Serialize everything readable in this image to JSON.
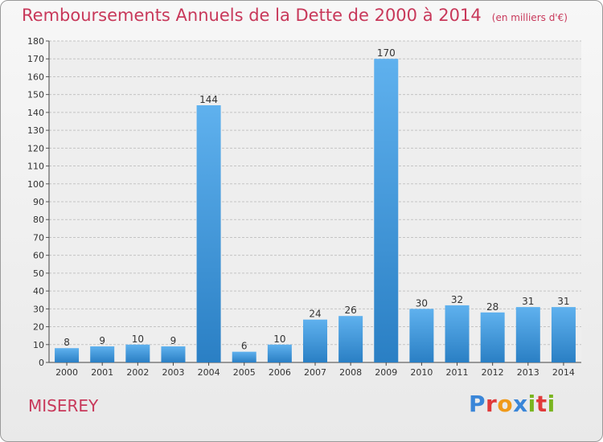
{
  "header": {
    "title": "Remboursements Annuels de la Dette de 2000 à 2014",
    "unit_note": "(en milliers d'€)"
  },
  "footer": {
    "town": "MISEREY",
    "logo": {
      "text": "Proxiti",
      "letters": [
        "P",
        "r",
        "o",
        "x",
        "i",
        "t",
        "i"
      ]
    }
  },
  "colors": {
    "title": "#c8385a",
    "bar_light": "#5fb1ee",
    "bar_dark": "#2a7fc4",
    "logo_letters": [
      "#3a86d8",
      "#e03a3a",
      "#f09a1a",
      "#3a86d8",
      "#7ab520",
      "#e03a3a",
      "#7ab520"
    ]
  },
  "chart_data": {
    "type": "bar",
    "categories": [
      "2000",
      "2001",
      "2002",
      "2003",
      "2004",
      "2005",
      "2006",
      "2007",
      "2008",
      "2009",
      "2010",
      "2011",
      "2012",
      "2013",
      "2014"
    ],
    "values": [
      8,
      9,
      10,
      9,
      144,
      6,
      10,
      24,
      26,
      170,
      30,
      32,
      28,
      31,
      31
    ],
    "ylim": [
      0,
      180
    ],
    "yticks": [
      0,
      10,
      20,
      30,
      40,
      50,
      60,
      70,
      80,
      90,
      100,
      110,
      120,
      130,
      140,
      150,
      160,
      170,
      180
    ],
    "grid": true,
    "data_labels": true
  }
}
